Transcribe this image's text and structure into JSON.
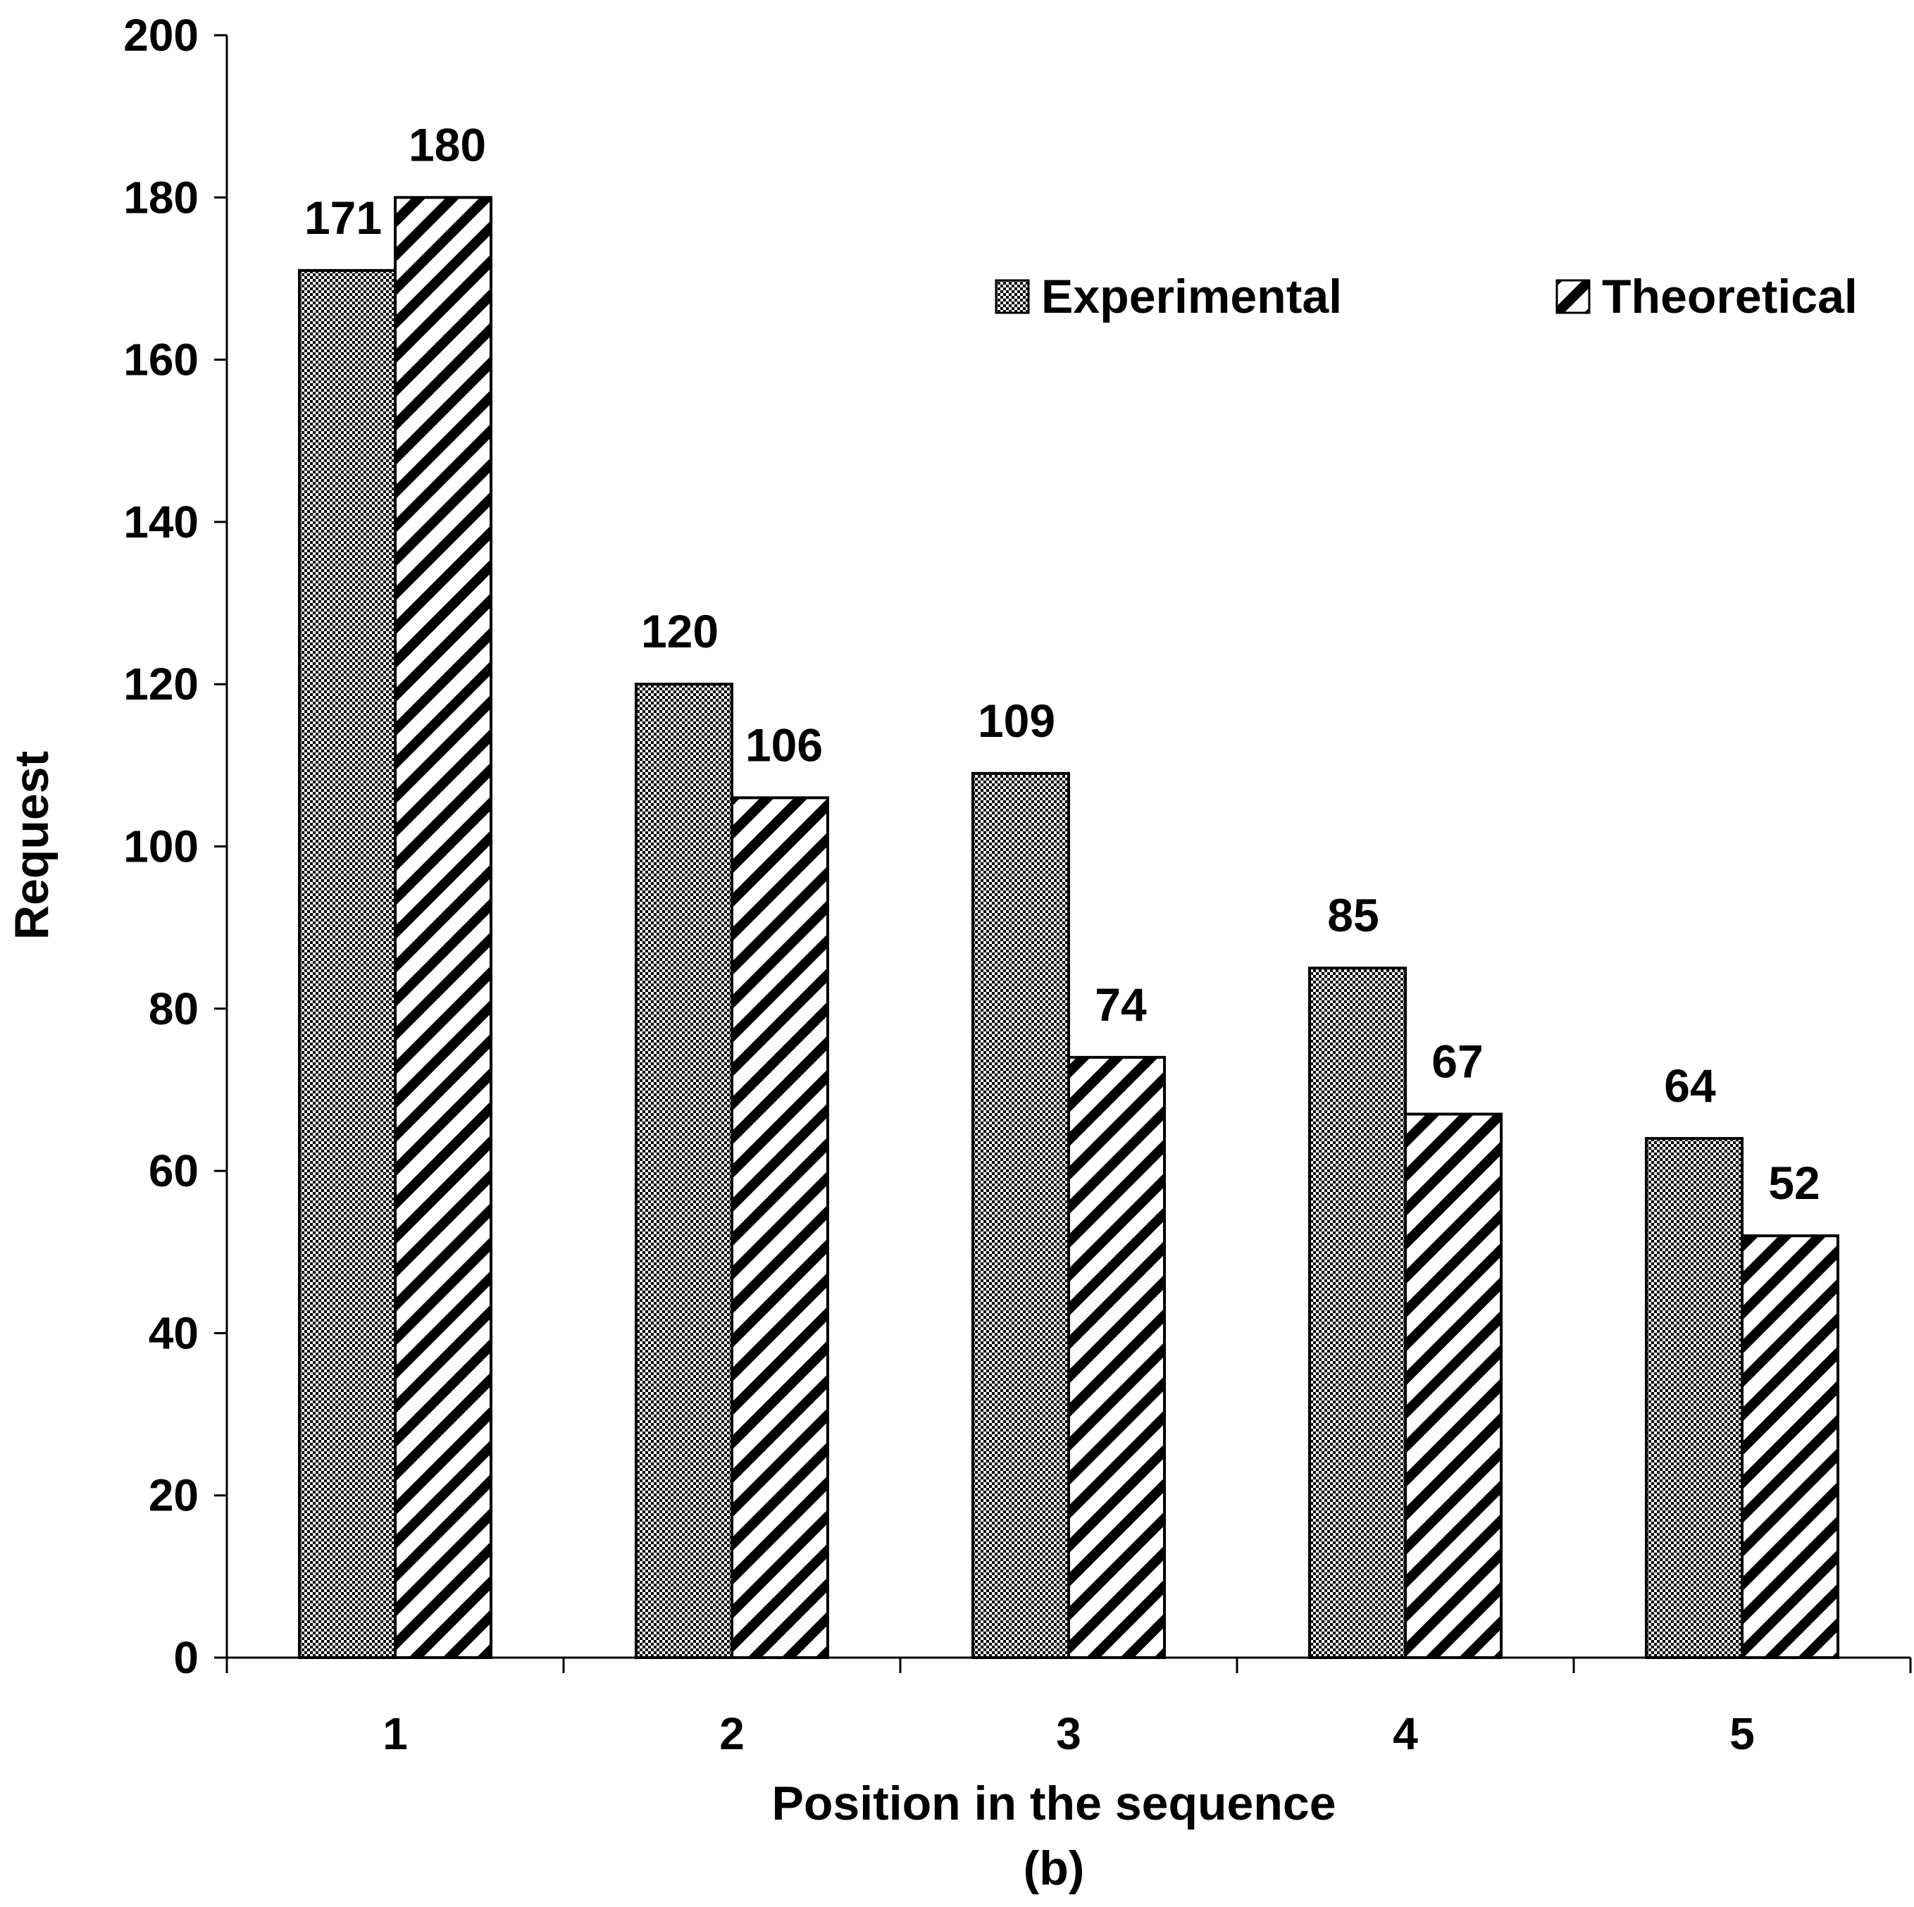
{
  "chart_data": {
    "type": "bar",
    "categories": [
      "1",
      "2",
      "3",
      "4",
      "5"
    ],
    "series": [
      {
        "name": "Experimental",
        "pattern": "checker",
        "values": [
          171,
          120,
          109,
          85,
          64
        ]
      },
      {
        "name": "Theoretical",
        "pattern": "diagonal",
        "values": [
          180,
          106,
          74,
          67,
          52
        ]
      }
    ],
    "xlabel": "Position in the sequence",
    "subcaption": "(b)",
    "ylabel": "Request",
    "ylim": [
      0,
      200
    ],
    "yticks": [
      0,
      20,
      40,
      60,
      80,
      100,
      120,
      140,
      160,
      180,
      200
    ],
    "grid": false,
    "legend_position": "top-right",
    "data_labels": true
  },
  "colors": {
    "stroke": "#000000",
    "background": "#ffffff"
  }
}
